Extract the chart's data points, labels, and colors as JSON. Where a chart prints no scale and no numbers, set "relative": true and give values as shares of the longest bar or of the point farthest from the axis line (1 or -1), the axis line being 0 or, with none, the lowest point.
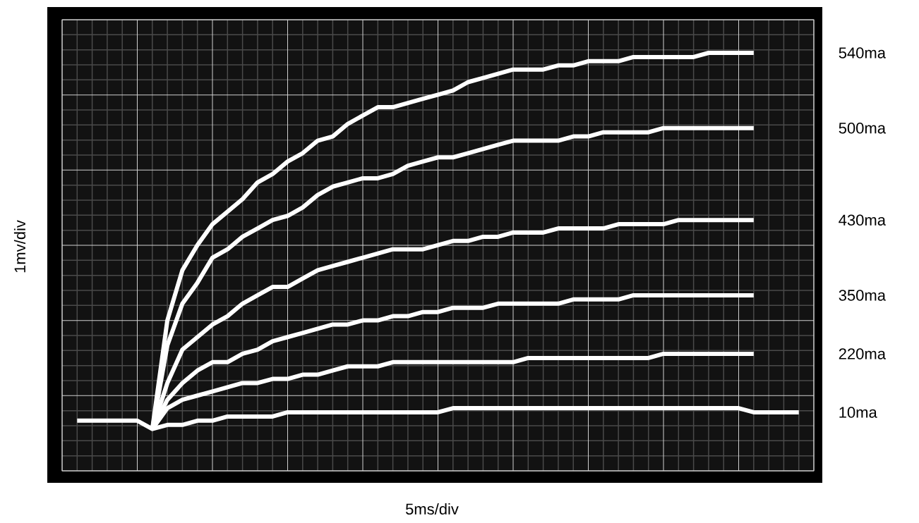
{
  "chart_data": {
    "type": "line",
    "relative": true,
    "grid": true,
    "xlabel": "5ms/div",
    "ylabel": "1mv/div",
    "categories": [
      null,
      null,
      null,
      null,
      null,
      null,
      null,
      null,
      null,
      null,
      null,
      null,
      null,
      null,
      null,
      null,
      null,
      null,
      null,
      null,
      null,
      null,
      null,
      null,
      null,
      null,
      null,
      null,
      null,
      null,
      null,
      null,
      null,
      null,
      null,
      null,
      null,
      null,
      null,
      null,
      null,
      null,
      null,
      null,
      null,
      null,
      null,
      null,
      null,
      null,
      null
    ],
    "series": [
      {
        "name": "540ma",
        "color": "#ffffff",
        "values": [
          null,
          null,
          null,
          null,
          null,
          null,
          0.1,
          0.36,
          0.48,
          0.54,
          0.59,
          0.62,
          0.65,
          0.69,
          0.71,
          0.74,
          0.76,
          0.79,
          0.8,
          0.83,
          0.85,
          0.87,
          0.87,
          0.88,
          0.89,
          0.9,
          0.91,
          0.93,
          0.94,
          0.95,
          0.96,
          0.96,
          0.96,
          0.97,
          0.97,
          0.98,
          0.98,
          0.98,
          0.99,
          0.99,
          0.99,
          0.99,
          0.99,
          1,
          1,
          1,
          1,
          null,
          null,
          null,
          null
        ]
      },
      {
        "name": "500ma",
        "color": "#ffffff",
        "values": [
          null,
          null,
          null,
          null,
          null,
          null,
          0.1,
          0.3,
          0.4,
          0.45,
          0.51,
          0.53,
          0.56,
          0.58,
          0.6,
          0.61,
          0.63,
          0.66,
          0.68,
          0.69,
          0.7,
          0.7,
          0.71,
          0.73,
          0.74,
          0.75,
          0.75,
          0.76,
          0.77,
          0.78,
          0.79,
          0.79,
          0.79,
          0.79,
          0.8,
          0.8,
          0.81,
          0.81,
          0.81,
          0.81,
          0.82,
          0.82,
          0.82,
          0.82,
          0.82,
          0.82,
          0.82,
          null,
          null,
          null,
          null
        ]
      },
      {
        "name": "430ma",
        "color": "#ffffff",
        "values": [
          null,
          null,
          null,
          null,
          null,
          null,
          0.1,
          0.21,
          0.29,
          0.32,
          0.35,
          0.37,
          0.4,
          0.42,
          0.44,
          0.44,
          0.46,
          0.48,
          0.49,
          0.5,
          0.51,
          0.52,
          0.53,
          0.53,
          0.53,
          0.54,
          0.55,
          0.55,
          0.56,
          0.56,
          0.57,
          0.57,
          0.57,
          0.58,
          0.58,
          0.58,
          0.58,
          0.59,
          0.59,
          0.59,
          0.59,
          0.6,
          0.6,
          0.6,
          0.6,
          0.6,
          0.6,
          null,
          null,
          null,
          null
        ]
      },
      {
        "name": "350ma",
        "color": "#ffffff",
        "values": [
          null,
          null,
          null,
          null,
          null,
          null,
          0.1,
          0.17,
          0.21,
          0.24,
          0.26,
          0.26,
          0.28,
          0.29,
          0.31,
          0.32,
          0.33,
          0.34,
          0.35,
          0.35,
          0.36,
          0.36,
          0.37,
          0.37,
          0.38,
          0.38,
          0.39,
          0.39,
          0.39,
          0.4,
          0.4,
          0.4,
          0.4,
          0.4,
          0.41,
          0.41,
          0.41,
          0.41,
          0.42,
          0.42,
          0.42,
          0.42,
          0.42,
          0.42,
          0.42,
          0.42,
          0.42,
          null,
          null,
          null,
          null
        ]
      },
      {
        "name": "220ma",
        "color": "#ffffff",
        "values": [
          null,
          null,
          null,
          null,
          null,
          null,
          0.1,
          0.15,
          0.17,
          0.18,
          0.19,
          0.2,
          0.21,
          0.21,
          0.22,
          0.22,
          0.23,
          0.23,
          0.24,
          0.25,
          0.25,
          0.25,
          0.26,
          0.26,
          0.26,
          0.26,
          0.26,
          0.26,
          0.26,
          0.26,
          0.26,
          0.27,
          0.27,
          0.27,
          0.27,
          0.27,
          0.27,
          0.27,
          0.27,
          0.27,
          0.28,
          0.28,
          0.28,
          0.28,
          0.28,
          0.28,
          0.28,
          null,
          null,
          null,
          null
        ]
      },
      {
        "name": "10ma",
        "color": "#ffffff",
        "values": [
          null,
          0.12,
          0.12,
          0.12,
          0.12,
          0.12,
          0.1,
          0.11,
          0.11,
          0.12,
          0.12,
          0.13,
          0.13,
          0.13,
          0.13,
          0.14,
          0.14,
          0.14,
          0.14,
          0.14,
          0.14,
          0.14,
          0.14,
          0.14,
          0.14,
          0.14,
          0.15,
          0.15,
          0.15,
          0.15,
          0.15,
          0.15,
          0.15,
          0.15,
          0.15,
          0.15,
          0.15,
          0.15,
          0.15,
          0.15,
          0.15,
          0.15,
          0.15,
          0.15,
          0.15,
          0.15,
          0.14,
          0.14,
          0.14,
          0.14,
          null
        ]
      }
    ]
  }
}
